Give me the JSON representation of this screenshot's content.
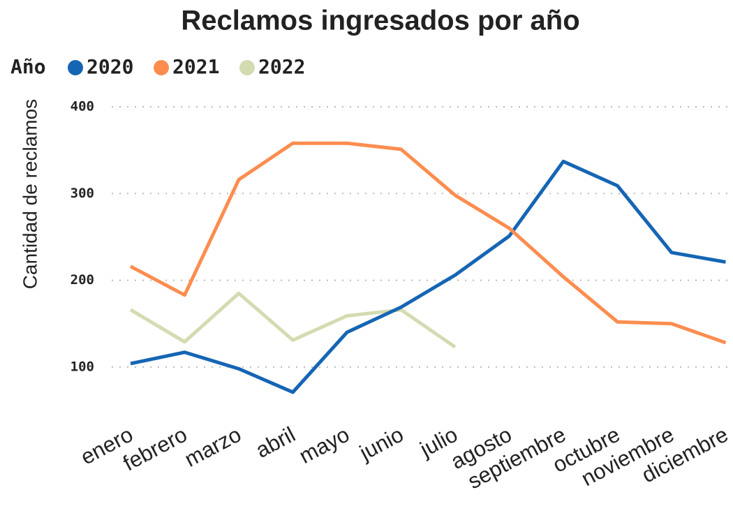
{
  "chart_data": {
    "type": "line",
    "title": "Reclamos ingresados por año",
    "legend_title": "Año",
    "legend": "top-left",
    "grid": true,
    "y_label": "Cantidad de reclamos",
    "categories": [
      "enero",
      "febrero",
      "marzo",
      "abril",
      "mayo",
      "junio",
      "julio",
      "agosto",
      "septiembre",
      "octubre",
      "noviembre",
      "diciembre"
    ],
    "series": [
      {
        "name": "2020",
        "color": "#1565b4",
        "values": [
          104,
          117,
          98,
          71,
          140,
          169,
          206,
          251,
          337,
          309,
          232,
          221
        ]
      },
      {
        "name": "2021",
        "color": "#fc8d4f",
        "values": [
          216,
          183,
          316,
          358,
          358,
          351,
          298,
          260,
          204,
          152,
          150,
          128
        ]
      },
      {
        "name": "2022",
        "color": "#d3dbb1",
        "values": [
          166,
          129,
          185,
          131,
          159,
          166,
          123,
          null,
          null,
          null,
          null,
          null
        ]
      }
    ],
    "ylim": [
      50,
      400
    ],
    "yticks": [
      100,
      200,
      300,
      400
    ]
  }
}
